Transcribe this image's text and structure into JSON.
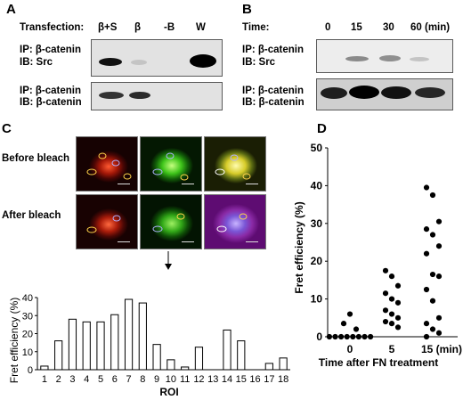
{
  "panelA": {
    "letter": "A",
    "transfection_label": "Transfection:",
    "lanes": [
      "β+S",
      "β",
      "-B",
      "W"
    ],
    "blot1": {
      "ip": "IP: β-catenin",
      "ib": "IB: Src"
    },
    "blot2": {
      "ip": "IP: β-catenin",
      "ib": "IB: β-catenin"
    }
  },
  "panelB": {
    "letter": "B",
    "time_label": "Time:",
    "lanes": [
      "0",
      "15",
      "30",
      "60 (min)"
    ],
    "blot1": {
      "ip": "IP: β-catenin",
      "ib": "IB: Src"
    },
    "blot2": {
      "ip": "IP: β-catenin",
      "ib": "IB: β-catenin"
    }
  },
  "panelC": {
    "letter": "C",
    "row_labels": [
      "Before bleach",
      "After bleach"
    ]
  },
  "panelD": {
    "letter": "D"
  },
  "chart_data": [
    {
      "type": "bar",
      "panel": "C",
      "xlabel": "ROI",
      "ylabel": "Fret efficiency (%)",
      "ylim": [
        0,
        40
      ],
      "yticks": [
        0,
        10,
        20,
        30,
        40
      ],
      "categories": [
        "1",
        "2",
        "3",
        "4",
        "5",
        "6",
        "7",
        "8",
        "9",
        "10",
        "11",
        "12",
        "13",
        "14",
        "15",
        "16",
        "17",
        "18"
      ],
      "values": [
        2,
        16,
        28,
        26.5,
        26.5,
        30.5,
        39,
        37,
        14,
        5.5,
        1.5,
        12.5,
        0,
        22,
        16,
        0,
        3.5,
        6.5
      ]
    },
    {
      "type": "scatter",
      "panel": "D",
      "xlabel": "Time after FN treatment",
      "ylabel": "Fret efficiency (%)",
      "ylim": [
        0,
        50
      ],
      "yticks": [
        0,
        10,
        20,
        30,
        40,
        50
      ],
      "categories": [
        "0",
        "5",
        "15 (min)"
      ],
      "groups": [
        {
          "x": "0",
          "values": [
            0,
            0,
            0,
            0,
            0,
            0,
            0,
            0,
            2,
            3.5,
            6
          ]
        },
        {
          "x": "5",
          "values": [
            17.5,
            16,
            13.5,
            11.5,
            10,
            9,
            7,
            6,
            5,
            4,
            3.5,
            2.5
          ]
        },
        {
          "x": "15 (min)",
          "values": [
            39.5,
            37.5,
            30.5,
            28.5,
            27,
            24,
            22,
            16.5,
            16,
            12.5,
            9.5,
            5,
            3.5,
            2,
            1,
            0
          ]
        }
      ]
    }
  ]
}
